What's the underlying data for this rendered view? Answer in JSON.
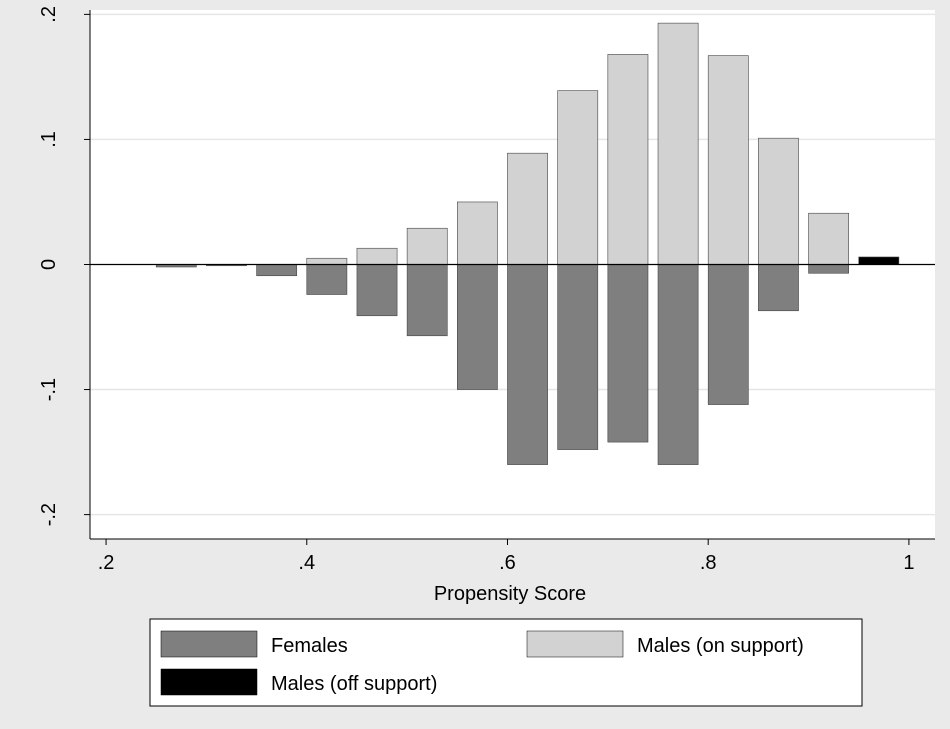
{
  "chart_data": {
    "type": "bar",
    "xlabel": "Propensity Score",
    "ylabel": "",
    "xlim": [
      0.2,
      1.0
    ],
    "ylim": [
      -0.2,
      0.2
    ],
    "xticks": [
      {
        "value": 0.2,
        "label": ".2"
      },
      {
        "value": 0.4,
        "label": ".4"
      },
      {
        "value": 0.6,
        "label": ".6"
      },
      {
        "value": 0.8,
        "label": ".8"
      },
      {
        "value": 1.0,
        "label": "1"
      }
    ],
    "yticks": [
      {
        "value": 0.2,
        "label": ".2"
      },
      {
        "value": 0.1,
        "label": ".1"
      },
      {
        "value": 0.0,
        "label": "0"
      },
      {
        "value": -0.1,
        "label": "-.1"
      },
      {
        "value": -0.2,
        "label": "-.2"
      }
    ],
    "grid": true,
    "legend_position": "bottom",
    "series": [
      {
        "name": "Females",
        "color": "#7f7f7f",
        "bars": [
          {
            "x0": 0.25,
            "x1": 0.29,
            "y": -0.002
          },
          {
            "x0": 0.3,
            "x1": 0.34,
            "y": -0.001
          },
          {
            "x0": 0.35,
            "x1": 0.39,
            "y": -0.009
          },
          {
            "x0": 0.4,
            "x1": 0.44,
            "y": -0.024
          },
          {
            "x0": 0.45,
            "x1": 0.49,
            "y": -0.041
          },
          {
            "x0": 0.5,
            "x1": 0.54,
            "y": -0.057
          },
          {
            "x0": 0.55,
            "x1": 0.59,
            "y": -0.1
          },
          {
            "x0": 0.6,
            "x1": 0.64,
            "y": -0.16
          },
          {
            "x0": 0.65,
            "x1": 0.69,
            "y": -0.148
          },
          {
            "x0": 0.7,
            "x1": 0.74,
            "y": -0.142
          },
          {
            "x0": 0.75,
            "x1": 0.79,
            "y": -0.16
          },
          {
            "x0": 0.8,
            "x1": 0.84,
            "y": -0.112
          },
          {
            "x0": 0.85,
            "x1": 0.89,
            "y": -0.037
          },
          {
            "x0": 0.9,
            "x1": 0.94,
            "y": -0.007
          }
        ]
      },
      {
        "name": "Males (on support)",
        "color": "#d2d2d2",
        "bars": [
          {
            "x0": 0.4,
            "x1": 0.44,
            "y": 0.005
          },
          {
            "x0": 0.45,
            "x1": 0.49,
            "y": 0.013
          },
          {
            "x0": 0.5,
            "x1": 0.54,
            "y": 0.029
          },
          {
            "x0": 0.55,
            "x1": 0.59,
            "y": 0.05
          },
          {
            "x0": 0.6,
            "x1": 0.64,
            "y": 0.089
          },
          {
            "x0": 0.65,
            "x1": 0.69,
            "y": 0.139
          },
          {
            "x0": 0.7,
            "x1": 0.74,
            "y": 0.168
          },
          {
            "x0": 0.75,
            "x1": 0.79,
            "y": 0.193
          },
          {
            "x0": 0.8,
            "x1": 0.84,
            "y": 0.167
          },
          {
            "x0": 0.85,
            "x1": 0.89,
            "y": 0.101
          },
          {
            "x0": 0.9,
            "x1": 0.94,
            "y": 0.041
          }
        ]
      },
      {
        "name": "Males (off support)",
        "color": "#000000",
        "bars": [
          {
            "x0": 0.95,
            "x1": 0.99,
            "y": 0.006
          }
        ]
      }
    ]
  }
}
